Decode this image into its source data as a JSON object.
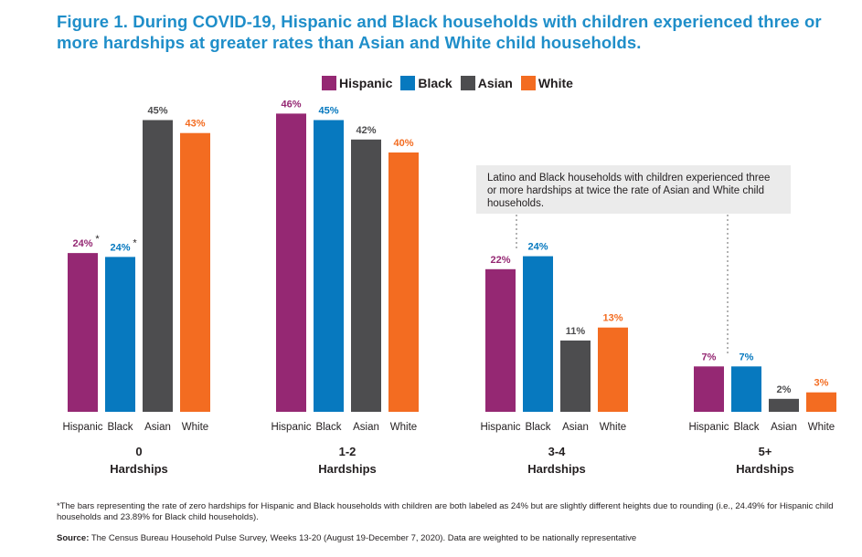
{
  "title": "Figure 1. During COVID-19, Hispanic and Black households with children experienced three or more hardships at greater rates than Asian and White child households.",
  "colors": {
    "Hispanic": "#952873",
    "Black": "#0779bf",
    "Asian": "#4d4d4f",
    "White": "#f36c21",
    "title": "#1f8ec9",
    "callout_bg": "#ebebeb"
  },
  "legend": [
    {
      "label": "Hispanic",
      "color": "#952873"
    },
    {
      "label": "Black",
      "color": "#0779bf"
    },
    {
      "label": "Asian",
      "color": "#4d4d4f"
    },
    {
      "label": "White",
      "color": "#f36c21"
    }
  ],
  "callout": "Latino and Black households with children experienced three or more hardships at twice the rate of Asian and White child households.",
  "footnote": "*The bars representing the rate of zero hardships for Hispanic and Black households with children are both labeled as 24% but are slightly different heights due to rounding (i.e., 24.49% for Hispanic child households and 23.89% for Black child households).",
  "source": {
    "label": "Source:",
    "text": "The Census Bureau Household Pulse Survey, Weeks 13-20 (August 19-December 7, 2020). Data are weighted to be nationally representative"
  },
  "chart_data": {
    "type": "bar",
    "series_names": [
      "Hispanic",
      "Black",
      "Asian",
      "White"
    ],
    "groups": [
      {
        "label_line1": "0",
        "label_line2": "Hardships",
        "bars": [
          {
            "name": "Hispanic",
            "value": 24.49,
            "label": "24%",
            "note": "*"
          },
          {
            "name": "Black",
            "value": 23.89,
            "label": "24%",
            "note": "*"
          },
          {
            "name": "Asian",
            "value": 45,
            "label": "45%",
            "note": ""
          },
          {
            "name": "White",
            "value": 43,
            "label": "43%",
            "note": ""
          }
        ]
      },
      {
        "label_line1": "1-2",
        "label_line2": "Hardships",
        "bars": [
          {
            "name": "Hispanic",
            "value": 46,
            "label": "46%",
            "note": ""
          },
          {
            "name": "Black",
            "value": 45,
            "label": "45%",
            "note": ""
          },
          {
            "name": "Asian",
            "value": 42,
            "label": "42%",
            "note": ""
          },
          {
            "name": "White",
            "value": 40,
            "label": "40%",
            "note": ""
          }
        ]
      },
      {
        "label_line1": "3-4",
        "label_line2": "Hardships",
        "bars": [
          {
            "name": "Hispanic",
            "value": 22,
            "label": "22%",
            "note": ""
          },
          {
            "name": "Black",
            "value": 24,
            "label": "24%",
            "note": ""
          },
          {
            "name": "Asian",
            "value": 11,
            "label": "11%",
            "note": ""
          },
          {
            "name": "White",
            "value": 13,
            "label": "13%",
            "note": ""
          }
        ]
      },
      {
        "label_line1": "5+",
        "label_line2": "Hardships",
        "bars": [
          {
            "name": "Hispanic",
            "value": 7,
            "label": "7%",
            "note": ""
          },
          {
            "name": "Black",
            "value": 7,
            "label": "7%",
            "note": ""
          },
          {
            "name": "Asian",
            "value": 2,
            "label": "2%",
            "note": ""
          },
          {
            "name": "White",
            "value": 3,
            "label": "3%",
            "note": ""
          }
        ]
      }
    ],
    "ylim": [
      0,
      46
    ],
    "grid": false,
    "legend_position": "top-center"
  }
}
